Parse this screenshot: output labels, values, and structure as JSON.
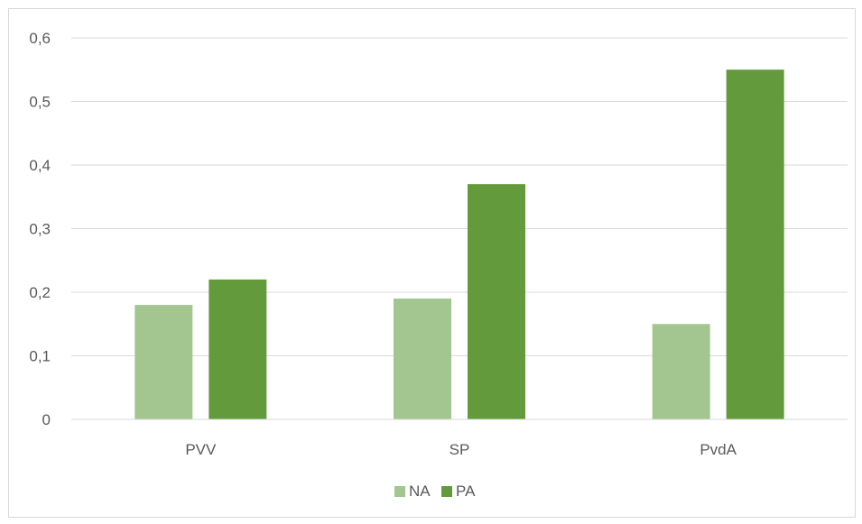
{
  "chart_data": {
    "type": "bar",
    "categories": [
      "PVV",
      "SP",
      "PvdA"
    ],
    "series": [
      {
        "name": "NA",
        "color": "#a3c58f",
        "values": [
          0.18,
          0.19,
          0.15
        ]
      },
      {
        "name": "PA",
        "color": "#639b3c",
        "values": [
          0.22,
          0.37,
          0.55
        ]
      }
    ],
    "ylim": [
      0,
      0.6
    ],
    "yticks": [
      0,
      0.1,
      0.2,
      0.3,
      0.4,
      0.5,
      0.6
    ],
    "ytick_labels": [
      "0",
      "0,1",
      "0,2",
      "0,3",
      "0,4",
      "0,5",
      "0,6"
    ],
    "grid": true,
    "legend_position": "bottom"
  }
}
